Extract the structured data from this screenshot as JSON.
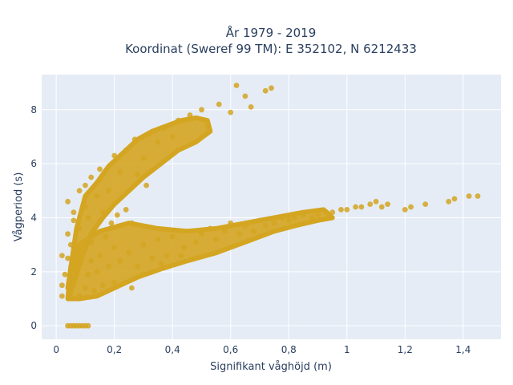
{
  "chart_data": {
    "type": "scatter",
    "title_line1": "År 1979 - 2019",
    "title_line2": "Koordinat (Sweref 99 TM): E 352102, N 6212433",
    "xlabel": "Signifikant våghöjd (m)",
    "ylabel": "Vågperiod (s)",
    "xlim": [
      -0.05,
      1.53
    ],
    "ylim": [
      -0.5,
      9.3
    ],
    "x_ticks": [
      0,
      0.2,
      0.4,
      0.6,
      0.8,
      1,
      1.2,
      1.4
    ],
    "x_tick_labels": [
      "0",
      "0,2",
      "0,4",
      "0,6",
      "0,8",
      "1",
      "1,2",
      "1,4"
    ],
    "y_ticks": [
      0,
      2,
      4,
      6,
      8
    ],
    "y_tick_labels": [
      "0",
      "2",
      "4",
      "6",
      "8"
    ],
    "grid": true,
    "marker_color": "#d4a521",
    "plot_bg": "#e5ecf6",
    "points": [
      [
        0.04,
        0
      ],
      [
        0.05,
        0
      ],
      [
        0.06,
        0
      ],
      [
        0.07,
        0
      ],
      [
        0.08,
        0
      ],
      [
        0.09,
        0
      ],
      [
        0.1,
        0
      ],
      [
        0.11,
        0
      ],
      [
        0.02,
        1.1
      ],
      [
        0.02,
        1.5
      ],
      [
        0.02,
        2.6
      ],
      [
        0.03,
        1.9
      ],
      [
        0.04,
        2.5
      ],
      [
        0.04,
        3.4
      ],
      [
        0.04,
        4.6
      ],
      [
        0.05,
        3.0
      ],
      [
        0.05,
        1.2
      ],
      [
        0.06,
        1.6
      ],
      [
        0.06,
        4.2
      ],
      [
        0.07,
        2.2
      ],
      [
        0.08,
        1.1
      ],
      [
        0.08,
        3.6
      ],
      [
        0.09,
        2.8
      ],
      [
        0.1,
        1.4
      ],
      [
        0.1,
        4.4
      ],
      [
        0.1,
        5.2
      ],
      [
        0.11,
        1.9
      ],
      [
        0.12,
        2.4
      ],
      [
        0.12,
        3.1
      ],
      [
        0.12,
        5.5
      ],
      [
        0.13,
        1.3
      ],
      [
        0.14,
        2.0
      ],
      [
        0.14,
        4.8
      ],
      [
        0.15,
        5.8
      ],
      [
        0.15,
        2.6
      ],
      [
        0.16,
        1.5
      ],
      [
        0.17,
        3.3
      ],
      [
        0.18,
        2.2
      ],
      [
        0.18,
        5.0
      ],
      [
        0.2,
        6.3
      ],
      [
        0.2,
        2.9
      ],
      [
        0.2,
        1.6
      ],
      [
        0.22,
        2.4
      ],
      [
        0.22,
        5.7
      ],
      [
        0.24,
        6.5
      ],
      [
        0.25,
        2.7
      ],
      [
        0.26,
        3.8
      ],
      [
        0.27,
        6.9
      ],
      [
        0.28,
        2.2
      ],
      [
        0.3,
        3.0
      ],
      [
        0.3,
        6.2
      ],
      [
        0.32,
        7.1
      ],
      [
        0.33,
        2.5
      ],
      [
        0.35,
        3.2
      ],
      [
        0.35,
        6.8
      ],
      [
        0.37,
        7.3
      ],
      [
        0.38,
        2.6
      ],
      [
        0.4,
        3.3
      ],
      [
        0.4,
        7.0
      ],
      [
        0.42,
        7.6
      ],
      [
        0.44,
        2.9
      ],
      [
        0.45,
        3.5
      ],
      [
        0.46,
        7.8
      ],
      [
        0.48,
        3.1
      ],
      [
        0.5,
        3.4
      ],
      [
        0.5,
        8.0
      ],
      [
        0.52,
        7.4
      ],
      [
        0.53,
        3.6
      ],
      [
        0.55,
        3.2
      ],
      [
        0.56,
        8.2
      ],
      [
        0.58,
        3.5
      ],
      [
        0.6,
        3.8
      ],
      [
        0.6,
        7.9
      ],
      [
        0.63,
        3.4
      ],
      [
        0.65,
        3.7
      ],
      [
        0.65,
        8.5
      ],
      [
        0.67,
        8.1
      ],
      [
        0.68,
        3.5
      ],
      [
        0.7,
        3.9
      ],
      [
        0.72,
        3.7
      ],
      [
        0.72,
        8.7
      ],
      [
        0.74,
        8.8
      ],
      [
        0.75,
        3.8
      ],
      [
        0.78,
        4.0
      ],
      [
        0.8,
        3.9
      ],
      [
        0.82,
        4.0
      ],
      [
        0.85,
        4.1
      ],
      [
        0.88,
        4.0
      ],
      [
        0.9,
        4.1
      ],
      [
        0.93,
        4.2
      ],
      [
        0.95,
        4.2
      ],
      [
        0.98,
        4.3
      ],
      [
        1.0,
        4.3
      ],
      [
        1.03,
        4.4
      ],
      [
        1.05,
        4.4
      ],
      [
        1.08,
        4.5
      ],
      [
        1.1,
        4.6
      ],
      [
        1.12,
        4.4
      ],
      [
        1.14,
        4.5
      ],
      [
        1.2,
        4.3
      ],
      [
        1.22,
        4.4
      ],
      [
        1.27,
        4.5
      ],
      [
        1.35,
        4.6
      ],
      [
        1.37,
        4.7
      ],
      [
        1.42,
        4.8
      ],
      [
        1.45,
        4.8
      ],
      [
        0.62,
        8.9
      ],
      [
        0.26,
        1.4
      ],
      [
        0.3,
        1.9
      ],
      [
        0.36,
        2.3
      ],
      [
        0.43,
        2.6
      ],
      [
        0.06,
        3.9
      ],
      [
        0.08,
        5.0
      ],
      [
        0.11,
        4.0
      ],
      [
        0.16,
        4.2
      ],
      [
        0.19,
        3.8
      ],
      [
        0.21,
        4.1
      ],
      [
        0.24,
        4.3
      ],
      [
        0.28,
        5.6
      ],
      [
        0.31,
        5.2
      ]
    ],
    "band_upper": [
      [
        0.04,
        1.4
      ],
      [
        0.07,
        3.6
      ],
      [
        0.1,
        4.8
      ],
      [
        0.14,
        5.3
      ],
      [
        0.18,
        5.9
      ],
      [
        0.23,
        6.4
      ],
      [
        0.28,
        6.9
      ],
      [
        0.33,
        7.2
      ],
      [
        0.38,
        7.4
      ],
      [
        0.43,
        7.6
      ],
      [
        0.48,
        7.7
      ],
      [
        0.52,
        7.6
      ],
      [
        0.53,
        7.2
      ],
      [
        0.48,
        6.8
      ],
      [
        0.42,
        6.5
      ],
      [
        0.36,
        6.0
      ],
      [
        0.3,
        5.5
      ],
      [
        0.25,
        5.0
      ],
      [
        0.2,
        4.5
      ],
      [
        0.16,
        4.0
      ],
      [
        0.12,
        3.4
      ],
      [
        0.09,
        2.6
      ],
      [
        0.07,
        1.9
      ],
      [
        0.05,
        1.3
      ]
    ],
    "band_lower": [
      [
        0.04,
        1.0
      ],
      [
        0.08,
        1.0
      ],
      [
        0.14,
        1.1
      ],
      [
        0.2,
        1.4
      ],
      [
        0.28,
        1.8
      ],
      [
        0.36,
        2.1
      ],
      [
        0.45,
        2.4
      ],
      [
        0.55,
        2.7
      ],
      [
        0.65,
        3.1
      ],
      [
        0.75,
        3.5
      ],
      [
        0.82,
        3.7
      ],
      [
        0.9,
        3.9
      ],
      [
        0.95,
        4.0
      ],
      [
        0.92,
        4.3
      ],
      [
        0.85,
        4.2
      ],
      [
        0.75,
        4.0
      ],
      [
        0.65,
        3.8
      ],
      [
        0.55,
        3.6
      ],
      [
        0.45,
        3.5
      ],
      [
        0.35,
        3.6
      ],
      [
        0.25,
        3.8
      ],
      [
        0.15,
        3.5
      ],
      [
        0.08,
        3.0
      ],
      [
        0.05,
        2.2
      ]
    ]
  }
}
